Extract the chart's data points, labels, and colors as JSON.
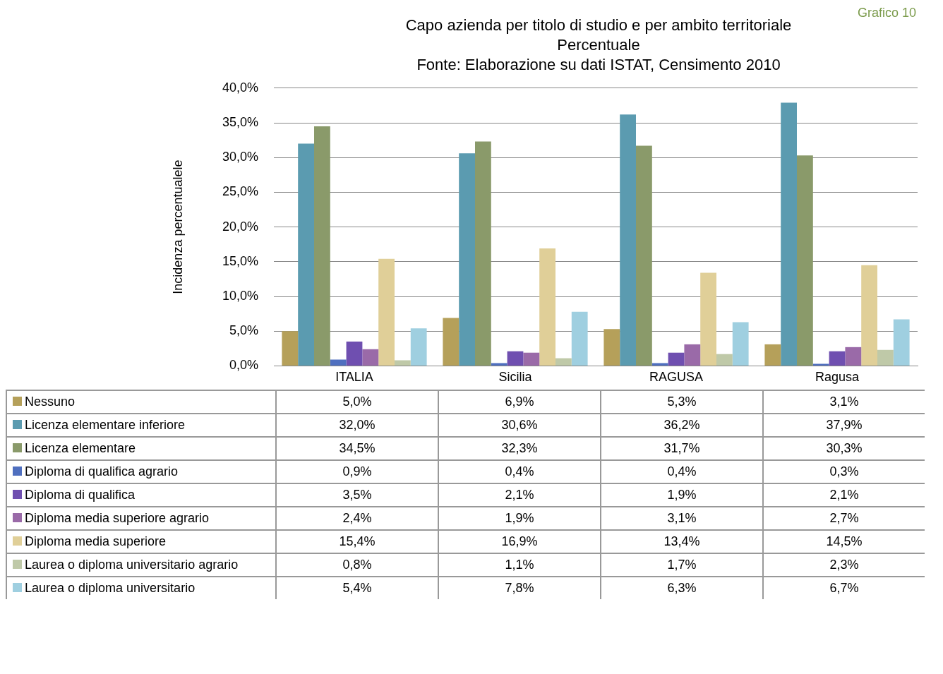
{
  "chart_data": {
    "type": "bar",
    "title": "Capo azienda per titolo di studio e per ambito territoriale",
    "subtitle": "Percentuale",
    "ylabel": "Incidenza percentualele",
    "annotations": [
      "Fonte: Elaborazione su dati ISTAT, Censimento 2010",
      "Grafico 10"
    ],
    "categories": [
      "ITALIA",
      "Sicilia",
      "RAGUSA",
      "Ragusa"
    ],
    "ylim": [
      0,
      40
    ],
    "yticks": [
      {
        "value": 0,
        "label": "0,0%"
      },
      {
        "value": 5,
        "label": "5,0%"
      },
      {
        "value": 10,
        "label": "10,0%"
      },
      {
        "value": 15,
        "label": "15,0%"
      },
      {
        "value": 20,
        "label": "20,0%"
      },
      {
        "value": 25,
        "label": "25,0%"
      },
      {
        "value": 30,
        "label": "30,0%"
      },
      {
        "value": 35,
        "label": "35,0%"
      },
      {
        "value": 40,
        "label": "40,0%"
      }
    ],
    "grid": "y",
    "legend": "bottom",
    "series": [
      {
        "name": "Nessuno",
        "color": "#b5a05a",
        "values": [
          5.0,
          6.9,
          5.3,
          3.1
        ],
        "value_labels": [
          "5,0%",
          "6,9%",
          "5,3%",
          "3,1%"
        ]
      },
      {
        "name": "Licenza elementare inferiore",
        "color": "#5b9bb0",
        "values": [
          32.0,
          30.6,
          36.2,
          37.9
        ],
        "value_labels": [
          "32,0%",
          "30,6%",
          "36,2%",
          "37,9%"
        ]
      },
      {
        "name": "Licenza elementare",
        "color": "#8a9a6a",
        "values": [
          34.5,
          32.3,
          31.7,
          30.3
        ],
        "value_labels": [
          "34,5%",
          "32,3%",
          "31,7%",
          "30,3%"
        ]
      },
      {
        "name": "Diploma di qualifica agrario",
        "color": "#4f6fbf",
        "values": [
          0.9,
          0.4,
          0.4,
          0.3
        ],
        "value_labels": [
          "0,9%",
          "0,4%",
          "0,4%",
          "0,3%"
        ]
      },
      {
        "name": "Diploma di qualifica",
        "color": "#6f4fb0",
        "values": [
          3.5,
          2.1,
          1.9,
          2.1
        ],
        "value_labels": [
          "3,5%",
          "2,1%",
          "1,9%",
          "2,1%"
        ]
      },
      {
        "name": "Diploma media superiore agrario",
        "color": "#9a6aa8",
        "values": [
          2.4,
          1.9,
          3.1,
          2.7
        ],
        "value_labels": [
          "2,4%",
          "1,9%",
          "3,1%",
          "2,7%"
        ]
      },
      {
        "name": "Diploma media superiore",
        "color": "#e0cf98",
        "values": [
          15.4,
          16.9,
          13.4,
          14.5
        ],
        "value_labels": [
          "15,4%",
          "16,9%",
          "13,4%",
          "14,5%"
        ]
      },
      {
        "name": "Laurea o diploma universitario agrario",
        "color": "#bfc9a8",
        "values": [
          0.8,
          1.1,
          1.7,
          2.3
        ],
        "value_labels": [
          "0,8%",
          "1,1%",
          "1,7%",
          "2,3%"
        ]
      },
      {
        "name": "Laurea o diploma universitario",
        "color": "#9fcfe0",
        "values": [
          5.4,
          7.8,
          6.3,
          6.7
        ],
        "value_labels": [
          "5,4%",
          "7,8%",
          "6,3%",
          "6,7%"
        ]
      }
    ]
  }
}
